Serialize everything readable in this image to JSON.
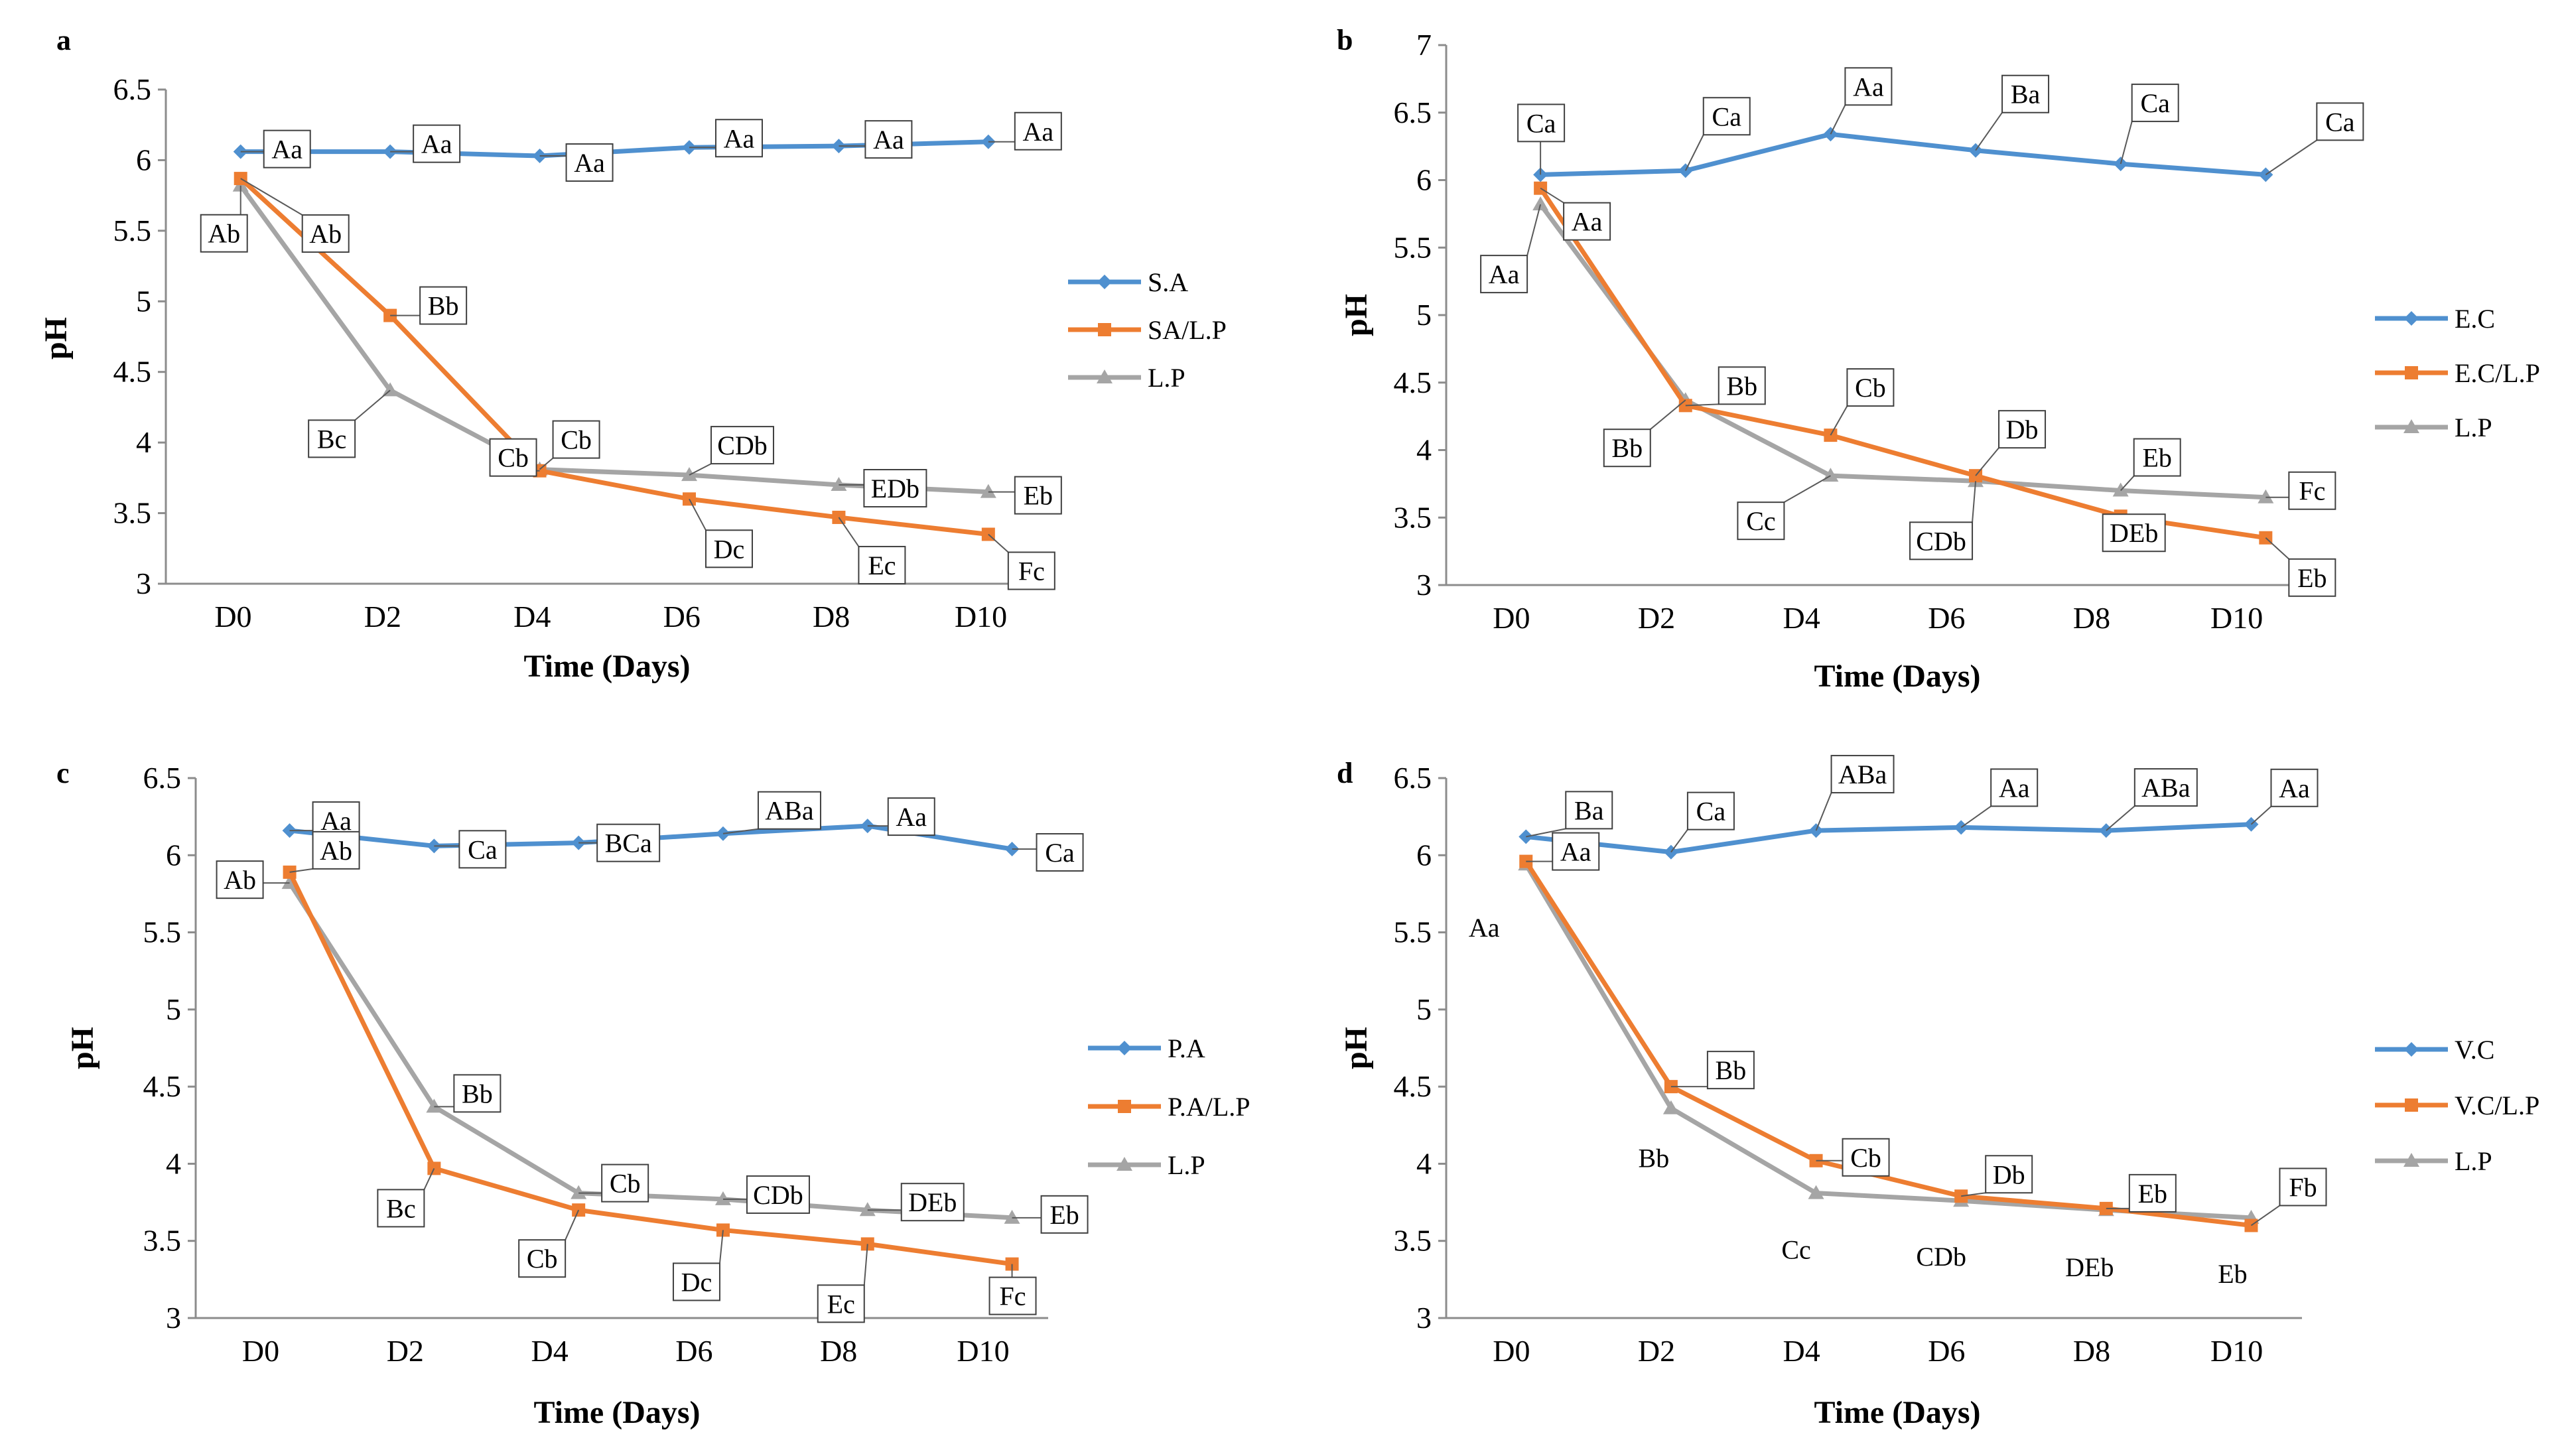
{
  "chart_data": [
    {
      "panel": "a",
      "type": "line",
      "xlabel": "Time (Days)",
      "ylabel": "pH",
      "categories": [
        "D0",
        "D2",
        "D4",
        "D6",
        "D8",
        "D10"
      ],
      "ylim": [
        3,
        6.5
      ],
      "yticks": [
        "3",
        "3.5",
        "4",
        "4.5",
        "5",
        "5.5",
        "6",
        "6.5"
      ],
      "legend_position": "right",
      "series": [
        {
          "name": "S.A",
          "color": "#4f90cf",
          "marker": "diamond",
          "x": [
            0.1,
            2.1,
            4.1,
            6.1,
            8.1,
            10.1
          ],
          "values": [
            6.06,
            6.06,
            6.03,
            6.09,
            6.1,
            6.13
          ],
          "labels": [
            "Aa",
            "Aa",
            "Aa",
            "Aa",
            "Aa",
            "Aa"
          ]
        },
        {
          "name": "SA/L.P",
          "color": "#ed7d31",
          "marker": "square",
          "x": [
            0.1,
            2.1,
            4.1,
            6.1,
            8.1,
            10.1
          ],
          "values": [
            5.87,
            4.9,
            3.8,
            3.6,
            3.47,
            3.35
          ],
          "labels": [
            "Ab",
            "Bb",
            "Cb",
            "Dc",
            "Ec",
            "Fc"
          ]
        },
        {
          "name": "L.P",
          "color": "#a5a5a5",
          "marker": "triangle",
          "x": [
            0.1,
            2.1,
            4.1,
            6.1,
            8.1,
            10.1
          ],
          "values": [
            5.82,
            4.37,
            3.81,
            3.77,
            3.7,
            3.65
          ],
          "labels": [
            "Ab",
            "Bc",
            "Cb",
            "CDb",
            "EDb",
            "Eb"
          ]
        }
      ]
    },
    {
      "panel": "b",
      "type": "line",
      "xlabel": "Time (Days)",
      "ylabel": "pH",
      "categories": [
        "D0",
        "D2",
        "D4",
        "D6",
        "D8",
        "D10"
      ],
      "ylim": [
        3,
        7
      ],
      "yticks": [
        "3",
        "3.5",
        "4",
        "4.5",
        "5",
        "5.5",
        "6",
        "6.5",
        "7"
      ],
      "legend_position": "right",
      "series": [
        {
          "name": "E.C",
          "color": "#4f90cf",
          "marker": "diamond",
          "x": [
            0.4,
            2.4,
            4.4,
            6.4,
            8.4,
            10.4
          ],
          "values": [
            6.04,
            6.07,
            6.34,
            6.22,
            6.12,
            6.04
          ],
          "labels": [
            "Ca",
            "Ca",
            "Aa",
            "Ba",
            "Ca",
            "Ca"
          ]
        },
        {
          "name": "E.C/L.P",
          "color": "#ed7d31",
          "marker": "square",
          "x": [
            0.4,
            2.4,
            4.4,
            6.4,
            8.4,
            10.4
          ],
          "values": [
            5.94,
            4.33,
            4.11,
            3.81,
            3.51,
            3.35
          ],
          "labels": [
            "Aa",
            "Bb",
            "Cb",
            "Db",
            "DEb",
            "Eb"
          ]
        },
        {
          "name": "L.P",
          "color": "#a5a5a5",
          "marker": "triangle",
          "x": [
            0.4,
            2.4,
            4.4,
            6.4,
            8.4,
            10.4
          ],
          "values": [
            5.82,
            4.37,
            3.81,
            3.77,
            3.7,
            3.65
          ],
          "labels": [
            "Aa",
            "Bb",
            "Cc",
            "CDb",
            "Eb",
            "Fc"
          ]
        }
      ]
    },
    {
      "panel": "c",
      "type": "line",
      "xlabel": "Time (Days)",
      "ylabel": "pH",
      "categories": [
        "D0",
        "D2",
        "D4",
        "D6",
        "D8",
        "D10"
      ],
      "ylim": [
        3,
        6.5
      ],
      "yticks": [
        "3",
        "3.5",
        "4",
        "4.5",
        "5",
        "5.5",
        "6",
        "6.5"
      ],
      "legend_position": "right",
      "series": [
        {
          "name": "P.A",
          "color": "#4f90cf",
          "marker": "diamond",
          "x": [
            0.4,
            2.4,
            4.4,
            6.4,
            8.4,
            10.4
          ],
          "values": [
            6.16,
            6.06,
            6.08,
            6.14,
            6.19,
            6.04
          ],
          "labels": [
            "Aa",
            "Ca",
            "BCa",
            "ABa",
            "Aa",
            "Ca"
          ]
        },
        {
          "name": "P.A/L.P",
          "color": "#ed7d31",
          "marker": "square",
          "x": [
            0.4,
            2.4,
            4.4,
            6.4,
            8.4,
            10.4
          ],
          "values": [
            5.89,
            3.97,
            3.7,
            3.57,
            3.48,
            3.35
          ],
          "labels": [
            "Ab",
            "Bc",
            "Cb",
            "Dc",
            "Ec",
            "Fc"
          ]
        },
        {
          "name": "L.P",
          "color": "#a5a5a5",
          "marker": "triangle",
          "x": [
            0.4,
            2.4,
            4.4,
            6.4,
            8.4,
            10.4
          ],
          "values": [
            5.82,
            4.37,
            3.81,
            3.77,
            3.7,
            3.65
          ],
          "labels": [
            "Ab",
            "Bb",
            "Cb",
            "CDb",
            "DEb",
            "Eb"
          ]
        }
      ]
    },
    {
      "panel": "d",
      "type": "line",
      "xlabel": "Time (Days)",
      "ylabel": "pH",
      "categories": [
        "D0",
        "D2",
        "D4",
        "D6",
        "D8",
        "D10"
      ],
      "ylim": [
        3,
        6.5
      ],
      "yticks": [
        "3",
        "3.5",
        "4",
        "4.5",
        "5",
        "5.5",
        "6",
        "6.5"
      ],
      "legend_position": "right",
      "series": [
        {
          "name": "V.C",
          "color": "#4f90cf",
          "marker": "diamond",
          "x": [
            0.2,
            2.2,
            4.2,
            6.2,
            8.2,
            10.2
          ],
          "values": [
            6.12,
            6.02,
            6.16,
            6.18,
            6.16,
            6.2
          ],
          "labels": [
            "Ba",
            "Ca",
            "ABa",
            "Aa",
            "ABa",
            "Aa"
          ]
        },
        {
          "name": "V.C/L.P",
          "color": "#ed7d31",
          "marker": "square",
          "x": [
            0.2,
            2.2,
            4.2,
            6.2,
            8.2,
            10.2
          ],
          "values": [
            5.96,
            4.5,
            4.02,
            3.79,
            3.71,
            3.6
          ],
          "labels": [
            "Aa",
            "Bb",
            "Cb",
            "Db",
            "Eb",
            "Fb"
          ]
        },
        {
          "name": "L.P",
          "color": "#a5a5a5",
          "marker": "triangle",
          "x": [
            0.2,
            2.2,
            4.2,
            6.2,
            8.2,
            10.2
          ],
          "values": [
            5.94,
            4.36,
            3.81,
            3.76,
            3.7,
            3.65
          ],
          "labels": [
            "Aa",
            "Bb",
            "Cc",
            "CDb",
            "DEb",
            "Eb"
          ]
        }
      ]
    }
  ]
}
